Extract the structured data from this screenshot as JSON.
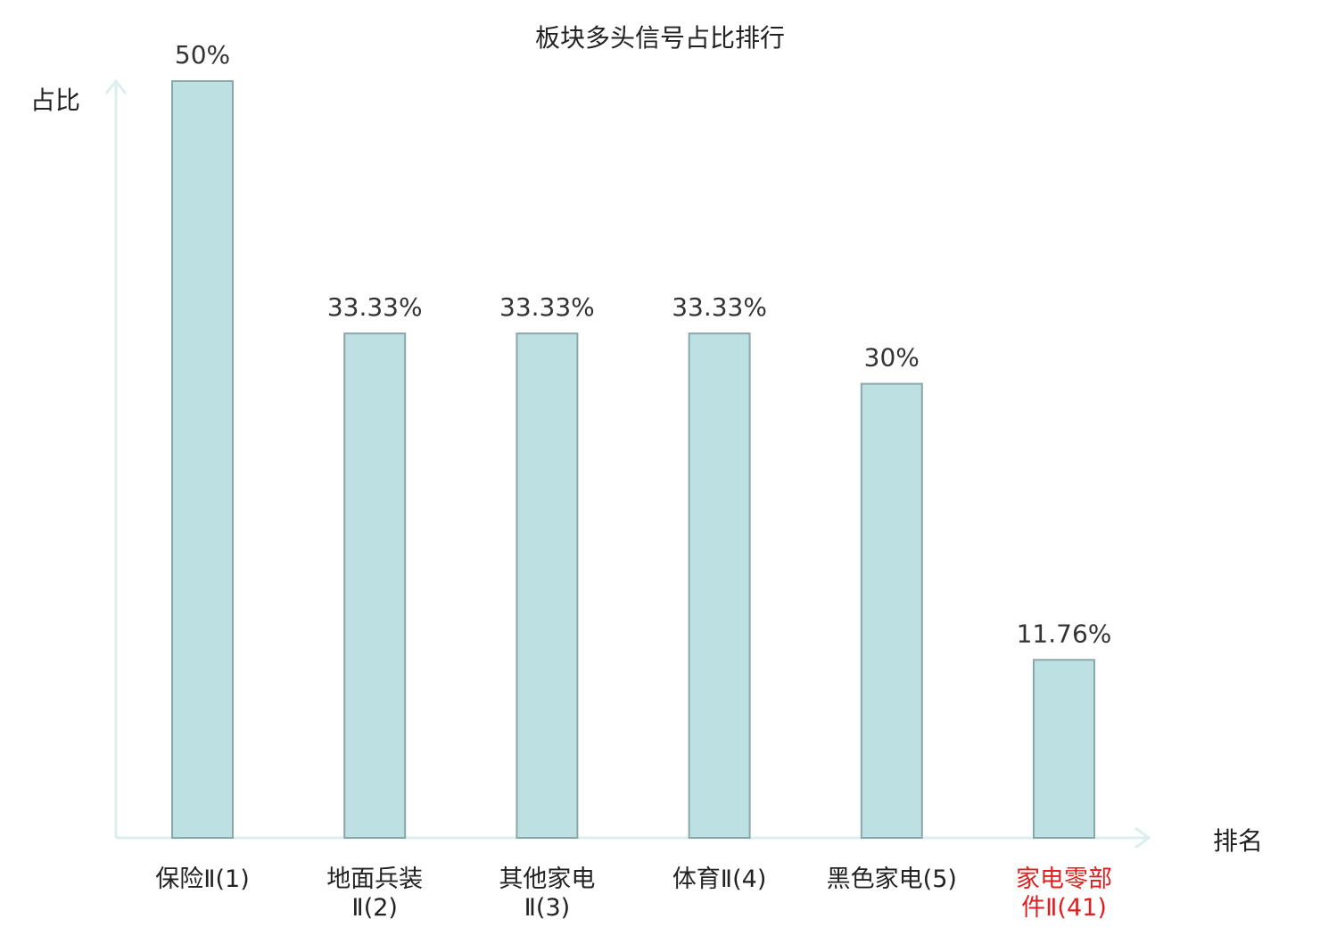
{
  "chart_data": {
    "type": "bar",
    "title": "板块多头信号占比排行",
    "ylabel": "占比",
    "xlabel": "排名",
    "ylim": [
      0,
      50
    ],
    "grid": false,
    "categories": [
      {
        "name": "保险Ⅱ",
        "rank": "(1)",
        "lines": [
          "保险Ⅱ(1)"
        ]
      },
      {
        "name": "地面兵装Ⅱ",
        "rank": "(2)",
        "lines": [
          "地面兵装",
          "Ⅱ(2)"
        ]
      },
      {
        "name": "其他家电Ⅱ",
        "rank": "(3)",
        "lines": [
          "其他家电",
          "Ⅱ(3)"
        ]
      },
      {
        "name": "体育Ⅱ",
        "rank": "(4)",
        "lines": [
          "体育Ⅱ(4)"
        ]
      },
      {
        "name": "黑色家电",
        "rank": "(5)",
        "lines": [
          "黑色家电(5)"
        ]
      },
      {
        "name": "家电零部件Ⅱ",
        "rank": "(41)",
        "lines": [
          "家电零部",
          "件Ⅱ(41)"
        ],
        "highlight": true
      }
    ],
    "values": [
      50,
      33.33,
      33.33,
      33.33,
      30,
      11.76
    ],
    "value_labels": [
      "50%",
      "33.33%",
      "33.33%",
      "33.33%",
      "30%",
      "11.76%"
    ],
    "colors": {
      "bar_fill": "#bde0e3",
      "bar_stroke": "#8aa7aa",
      "axis": "#dcefed",
      "label": "#222222",
      "highlight_label": "#e02020"
    }
  }
}
